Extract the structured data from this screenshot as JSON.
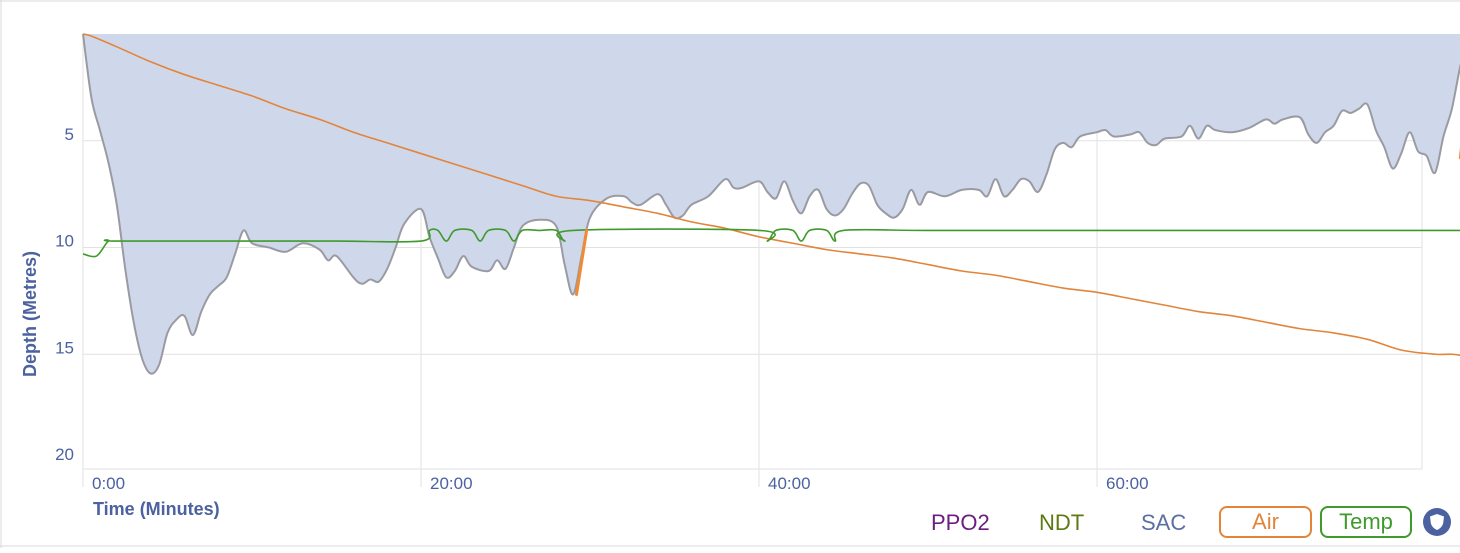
{
  "chart_data": {
    "type": "area",
    "xlabel": "Time (Minutes)",
    "ylabel": "Depth (Metres)",
    "xlim": [
      0,
      80
    ],
    "ylim": [
      0,
      21
    ],
    "x_tick_values": [
      0,
      20,
      40,
      60
    ],
    "x_ticks": [
      "0:00",
      "20:00",
      "40:00",
      "60:00"
    ],
    "y_ticks": [
      5,
      10,
      15,
      20
    ],
    "y_inverted": true,
    "grid": true,
    "series": [
      {
        "key": "depth",
        "color": "#cfd8eb",
        "line_color": "#9a9aa2",
        "points": [
          [
            0,
            0
          ],
          [
            0.5,
            3
          ],
          [
            1,
            4.5
          ],
          [
            1.5,
            6
          ],
          [
            2,
            8
          ],
          [
            2.5,
            11
          ],
          [
            3,
            13.5
          ],
          [
            3.5,
            15.2
          ],
          [
            4,
            15.9
          ],
          [
            4.5,
            15.5
          ],
          [
            5,
            14
          ],
          [
            5.5,
            13.4
          ],
          [
            6,
            13.2
          ],
          [
            6.5,
            14.1
          ],
          [
            7,
            13
          ],
          [
            7.5,
            12.2
          ],
          [
            8,
            11.8
          ],
          [
            8.5,
            11.4
          ],
          [
            9,
            10.3
          ],
          [
            9.5,
            9.2
          ],
          [
            10,
            9.8
          ],
          [
            11,
            10
          ],
          [
            12,
            10.2
          ],
          [
            13,
            9.8
          ],
          [
            14,
            10.1
          ],
          [
            14.5,
            10.6
          ],
          [
            15,
            10.4
          ],
          [
            16,
            11.4
          ],
          [
            16.5,
            11.7
          ],
          [
            17,
            11.5
          ],
          [
            17.5,
            11.6
          ],
          [
            18,
            11
          ],
          [
            18.5,
            10
          ],
          [
            19,
            8.9
          ],
          [
            20,
            8.2
          ],
          [
            20.5,
            9.5
          ],
          [
            21,
            10.5
          ],
          [
            21.5,
            11.4
          ],
          [
            22,
            11.1
          ],
          [
            22.5,
            10.4
          ],
          [
            23,
            10.9
          ],
          [
            24,
            11.1
          ],
          [
            24.5,
            10.6
          ],
          [
            25,
            11
          ],
          [
            25.5,
            10
          ],
          [
            26,
            9
          ],
          [
            27,
            8.7
          ],
          [
            28,
            9
          ],
          [
            28.5,
            10.8
          ],
          [
            29,
            12.2
          ],
          [
            29.5,
            10.4
          ],
          [
            30,
            8.6
          ],
          [
            31,
            7.7
          ],
          [
            32,
            7.6
          ],
          [
            32.5,
            7.9
          ],
          [
            33,
            8
          ],
          [
            34,
            7.5
          ],
          [
            34.5,
            8
          ],
          [
            35,
            8.6
          ],
          [
            35.5,
            8.5
          ],
          [
            36,
            8
          ],
          [
            37,
            7.6
          ],
          [
            38,
            6.8
          ],
          [
            38.5,
            7.2
          ],
          [
            39,
            7.2
          ],
          [
            40,
            6.9
          ],
          [
            40.5,
            7.4
          ],
          [
            41,
            7.7
          ],
          [
            41.5,
            6.9
          ],
          [
            42,
            7.8
          ],
          [
            42.5,
            8.4
          ],
          [
            43,
            7.6
          ],
          [
            43.5,
            7.3
          ],
          [
            44,
            8.2
          ],
          [
            44.5,
            8.5
          ],
          [
            45,
            8.2
          ],
          [
            45.5,
            7.5
          ],
          [
            46,
            7
          ],
          [
            46.5,
            7.1
          ],
          [
            47,
            8
          ],
          [
            47.5,
            8.4
          ],
          [
            48,
            8.6
          ],
          [
            48.5,
            8.2
          ],
          [
            49,
            7.3
          ],
          [
            49.5,
            8
          ],
          [
            50,
            7.4
          ],
          [
            51,
            7.6
          ],
          [
            52,
            7.3
          ],
          [
            53,
            7.3
          ],
          [
            53.5,
            7.6
          ],
          [
            54,
            6.8
          ],
          [
            54.5,
            7.6
          ],
          [
            55,
            7.3
          ],
          [
            55.5,
            6.8
          ],
          [
            56,
            6.9
          ],
          [
            56.5,
            7.4
          ],
          [
            57,
            6.6
          ],
          [
            57.5,
            5.4
          ],
          [
            58,
            5.1
          ],
          [
            58.5,
            5.3
          ],
          [
            59,
            4.8
          ],
          [
            60,
            4.6
          ],
          [
            60.5,
            4.5
          ],
          [
            61,
            4.8
          ],
          [
            62,
            4.7
          ],
          [
            62.5,
            4.6
          ],
          [
            63,
            5.1
          ],
          [
            63.5,
            5.2
          ],
          [
            64,
            4.9
          ],
          [
            65,
            4.8
          ],
          [
            65.5,
            4.3
          ],
          [
            66,
            4.9
          ],
          [
            66.5,
            4.3
          ],
          [
            67,
            4.5
          ],
          [
            68,
            4.6
          ],
          [
            69,
            4.4
          ],
          [
            70,
            4
          ],
          [
            70.5,
            4.2
          ],
          [
            71,
            4
          ],
          [
            72,
            3.9
          ],
          [
            72.5,
            4.7
          ],
          [
            73,
            5.1
          ],
          [
            73.5,
            4.6
          ],
          [
            74,
            4.3
          ],
          [
            74.5,
            3.6
          ],
          [
            75,
            3.7
          ],
          [
            75.5,
            3.5
          ],
          [
            76,
            3.3
          ],
          [
            76.5,
            4.5
          ],
          [
            77,
            5.3
          ],
          [
            77.5,
            6.3
          ],
          [
            78,
            5.6
          ],
          [
            78.5,
            4.6
          ],
          [
            79,
            5.5
          ],
          [
            79.5,
            5.7
          ],
          [
            80,
            6.5
          ],
          [
            80.5,
            4.8
          ],
          [
            81,
            3.5
          ],
          [
            81.5,
            1.5
          ],
          [
            82,
            0
          ]
        ]
      },
      {
        "key": "air",
        "name": "Air",
        "color": "#e2853b",
        "points": [
          [
            0,
            0
          ],
          [
            0.5,
            0.1
          ],
          [
            2,
            0.6
          ],
          [
            4,
            1.3
          ],
          [
            6,
            1.9
          ],
          [
            8,
            2.4
          ],
          [
            10,
            2.9
          ],
          [
            12,
            3.5
          ],
          [
            14,
            4.0
          ],
          [
            16,
            4.6
          ],
          [
            18,
            5.1
          ],
          [
            20,
            5.6
          ],
          [
            22,
            6.1
          ],
          [
            24,
            6.6
          ],
          [
            26,
            7.1
          ],
          [
            28,
            7.6
          ],
          [
            30,
            7.8
          ],
          [
            32,
            8.1
          ],
          [
            34,
            8.4
          ],
          [
            36,
            8.8
          ],
          [
            38,
            9.1
          ],
          [
            40,
            9.5
          ],
          [
            42,
            9.8
          ],
          [
            44,
            10.1
          ],
          [
            46,
            10.3
          ],
          [
            48,
            10.5
          ],
          [
            50,
            10.8
          ],
          [
            52,
            11.1
          ],
          [
            54,
            11.3
          ],
          [
            56,
            11.6
          ],
          [
            58,
            11.9
          ],
          [
            60,
            12.1
          ],
          [
            62,
            12.4
          ],
          [
            64,
            12.7
          ],
          [
            66,
            13
          ],
          [
            68,
            13.2
          ],
          [
            70,
            13.5
          ],
          [
            72,
            13.8
          ],
          [
            74,
            14.0
          ],
          [
            76,
            14.3
          ],
          [
            78,
            14.8
          ],
          [
            80,
            15.0
          ],
          [
            81,
            15.0
          ],
          [
            82,
            15.1
          ]
        ]
      },
      {
        "key": "temp",
        "name": "Temp",
        "color": "#3e9a2b",
        "points": [
          [
            0,
            10.3
          ],
          [
            0.8,
            10.4
          ],
          [
            1.5,
            9.7
          ],
          [
            2,
            9.7
          ],
          [
            10,
            9.7
          ],
          [
            15,
            9.7
          ],
          [
            20,
            9.7
          ],
          [
            20.5,
            9.2
          ],
          [
            21,
            9.2
          ],
          [
            21.5,
            9.7
          ],
          [
            22,
            9.2
          ],
          [
            23,
            9.2
          ],
          [
            23.5,
            9.7
          ],
          [
            24,
            9.2
          ],
          [
            25,
            9.2
          ],
          [
            25.5,
            9.7
          ],
          [
            26,
            9.2
          ],
          [
            27,
            9.2
          ],
          [
            28,
            9.2
          ],
          [
            28.5,
            9.7
          ],
          [
            29,
            9.2
          ],
          [
            40,
            9.2
          ],
          [
            40.5,
            9.7
          ],
          [
            41,
            9.2
          ],
          [
            42,
            9.2
          ],
          [
            42.5,
            9.7
          ],
          [
            43,
            9.2
          ],
          [
            44,
            9.2
          ],
          [
            44.5,
            9.7
          ],
          [
            45,
            9.2
          ],
          [
            50,
            9.2
          ],
          [
            60,
            9.2
          ],
          [
            70,
            9.2
          ],
          [
            82,
            9.2
          ]
        ]
      }
    ],
    "gas_switches": [
      {
        "color": "#f08a35",
        "x0": 29.2,
        "y0": 12.2,
        "x1": 29.8,
        "y1": 9.2
      },
      {
        "color": "#f08a35",
        "x0": 81.5,
        "y0": 5.8,
        "x1": 82,
        "y1": 2.2
      }
    ],
    "legend": [
      "PPO2",
      "NDT",
      "SAC",
      "Air",
      "Temp"
    ]
  },
  "legend": {
    "ppo2": {
      "label": "PPO2",
      "color": "#6b1e7f"
    },
    "ndt": {
      "label": "NDT",
      "color": "#5c7a10"
    },
    "sac": {
      "label": "SAC",
      "color": "#5b6fa0"
    },
    "air": {
      "label": "Air",
      "color": "#e2853b"
    },
    "temp": {
      "label": "Temp",
      "color": "#3e9a2b"
    }
  },
  "colors": {
    "axis_title": "#4c62a0",
    "tick_label": "#4c62a0",
    "grid": "#e2e2e2",
    "shield": "#4c62a0"
  },
  "icons": {
    "toggle": "shield-icon"
  }
}
